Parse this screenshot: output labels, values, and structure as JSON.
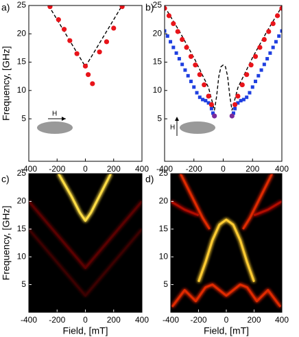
{
  "chart_data": [
    {
      "type": "scatter",
      "label": "a)",
      "ylabel": "Frequency, [GHz]",
      "annotation": "H",
      "xlim": [
        -400,
        400
      ],
      "ylim": [
        -2.5,
        25
      ],
      "xticks": [
        -400,
        -200,
        0,
        200,
        400
      ],
      "yticks": [
        5,
        10,
        15,
        20,
        25
      ],
      "series": [
        {
          "style": "dashed",
          "color": "#000000",
          "x": [
            -260,
            0,
            260
          ],
          "values": [
            25,
            14.2,
            25
          ]
        },
        {
          "style": "dots",
          "color": "#e8141a",
          "x": [
            -250,
            -190,
            -150,
            -110,
            -60,
            0,
            20,
            50,
            100,
            150,
            200,
            260
          ],
          "values": [
            24.8,
            22.5,
            20.8,
            18.8,
            16.5,
            14.3,
            12.8,
            11.2,
            16.8,
            18.6,
            21,
            24.8
          ]
        }
      ]
    },
    {
      "type": "scatter",
      "label": "b)",
      "annotation": "H",
      "xlim": [
        -400,
        400
      ],
      "ylim": [
        -2.5,
        25
      ],
      "xticks": [
        -400,
        -200,
        0,
        200,
        400
      ],
      "yticks": [
        5,
        10,
        15,
        20,
        25
      ],
      "series": [
        {
          "style": "squares",
          "color": "#1f3fe0",
          "x": [
            -400,
            -380,
            -360,
            -340,
            -320,
            -300,
            -280,
            -260,
            -240,
            -220,
            -200,
            -180,
            -160,
            -140,
            -120,
            -100,
            -80,
            -70,
            70,
            80,
            100,
            120,
            140,
            160,
            180,
            200,
            220,
            240,
            260,
            280,
            300,
            320,
            340,
            360,
            380,
            400
          ],
          "values": [
            20.5,
            19.6,
            18.6,
            17.6,
            16.6,
            15.6,
            14.6,
            13.6,
            12.6,
            11.6,
            10.6,
            9.6,
            8.8,
            8.4,
            8.2,
            7.8,
            6.8,
            6,
            6,
            6.8,
            7.8,
            8.2,
            8.4,
            8.8,
            9.6,
            10.6,
            11.6,
            12.6,
            13.6,
            14.6,
            15.6,
            16.6,
            17.6,
            18.6,
            19.6,
            20.5
          ]
        },
        {
          "style": "dashed",
          "color": "#000000",
          "x": [
            -400,
            -300,
            -200,
            -100,
            -60,
            -45,
            -30,
            -15,
            0,
            15,
            30,
            45,
            60,
            100,
            200,
            300,
            400
          ],
          "values": [
            24.8,
            20.5,
            15.8,
            10.5,
            6.5,
            9,
            12.5,
            14.2,
            14.5,
            14.2,
            12.5,
            9,
            6.5,
            10.5,
            15.8,
            20.5,
            24.8
          ]
        },
        {
          "style": "dots",
          "color": "#e8141a",
          "x": [
            -400,
            -370,
            -340,
            -310,
            -280,
            -250,
            -220,
            -190,
            -160,
            -130,
            -100,
            -80,
            80,
            100,
            130,
            160,
            190,
            220,
            250,
            280,
            310,
            340,
            370,
            400
          ],
          "values": [
            24.5,
            23.2,
            21.8,
            20.4,
            19,
            17.6,
            16,
            14.5,
            12.8,
            11,
            9,
            7.5,
            7.5,
            9,
            11,
            12.8,
            14.5,
            16,
            17.6,
            19,
            20.4,
            21.8,
            23.2,
            24.5
          ]
        },
        {
          "style": "dots",
          "color": "#7a2a9a",
          "x": [
            -60,
            60
          ],
          "values": [
            5.5,
            5.5
          ]
        }
      ]
    },
    {
      "type": "heatmap",
      "label": "c)",
      "ylabel": "Frequency, [GHz]",
      "xlabel": "Field, [mT]",
      "xlim": [
        -400,
        400
      ],
      "ylim": [
        0,
        25
      ],
      "xticks": [
        -400,
        -200,
        0,
        200,
        400
      ],
      "yticks": [
        5,
        10,
        15,
        20,
        25
      ],
      "series": [
        {
          "color": "#3a0000",
          "x": [
            -400,
            0,
            400
          ],
          "values": [
            15,
            3,
            15
          ]
        },
        {
          "color": "#5a0000",
          "x": [
            -400,
            0,
            400
          ],
          "values": [
            20,
            8,
            20
          ]
        },
        {
          "color": "#ffdd44",
          "x": [
            -190,
            -100,
            -40,
            0,
            40,
            100,
            180
          ],
          "values": [
            25,
            21,
            18,
            16.5,
            18,
            21,
            25
          ]
        }
      ]
    },
    {
      "type": "heatmap",
      "label": "d)",
      "xlabel": "Field, [mT]",
      "xlim": [
        -400,
        400
      ],
      "ylim": [
        0,
        25
      ],
      "xticks": [
        -400,
        -200,
        0,
        200,
        400
      ],
      "yticks": [
        5,
        10,
        15,
        20,
        25
      ],
      "series": [
        {
          "color": "#b01000",
          "x": [
            -400,
            -300,
            -200
          ],
          "values": [
            20,
            18.5,
            17.5
          ]
        },
        {
          "color": "#b01000",
          "x": [
            200,
            300,
            400
          ],
          "values": [
            17.5,
            18.5,
            20
          ]
        },
        {
          "color": "#e02a00",
          "x": [
            -330,
            -250,
            -170,
            -120
          ],
          "values": [
            25,
            21,
            17,
            15
          ]
        },
        {
          "color": "#e02a00",
          "x": [
            120,
            170,
            250,
            330
          ],
          "values": [
            15,
            17,
            21,
            25
          ]
        },
        {
          "color": "#e02a00",
          "x": [
            -390,
            -300,
            -220,
            -150,
            -100,
            -50,
            0,
            50,
            100,
            150,
            220,
            300,
            390
          ],
          "values": [
            1,
            4,
            2,
            4.5,
            5,
            4,
            3,
            4,
            5,
            4.5,
            2,
            4,
            1
          ]
        },
        {
          "color": "#ffcc33",
          "x": [
            -200,
            -150,
            -100,
            -50,
            0,
            50,
            100,
            150,
            200
          ],
          "values": [
            5.5,
            9,
            13,
            15.8,
            16.7,
            15.8,
            13,
            9,
            5.5
          ]
        }
      ]
    }
  ]
}
